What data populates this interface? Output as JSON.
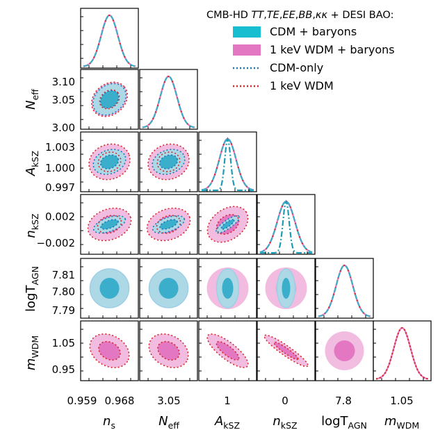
{
  "chart_data": {
    "type": "corner",
    "legend": {
      "title": "CMB-HD TT,TE,EE,BB,κκ + DESI BAO:",
      "title_parts": [
        {
          "t": "CMB-HD ",
          "i": false
        },
        {
          "t": "TT",
          "i": true
        },
        {
          "t": ",",
          "i": false
        },
        {
          "t": "TE",
          "i": true
        },
        {
          "t": ",",
          "i": false
        },
        {
          "t": "EE",
          "i": true
        },
        {
          "t": ",",
          "i": false
        },
        {
          "t": "BB",
          "i": true
        },
        {
          "t": ",",
          "i": false
        },
        {
          "t": "κκ",
          "i": true
        },
        {
          "t": " + DESI BAO:",
          "i": false
        }
      ],
      "placement": "top-right",
      "entries": [
        {
          "label": "CDM + baryons",
          "style": "filled",
          "color": "#17becf"
        },
        {
          "label": "1 keV WDM + baryons",
          "style": "filled",
          "color": "#e377c2"
        },
        {
          "label": "CDM-only",
          "style": "dotted",
          "color": "#1f77b4"
        },
        {
          "label": "1 keV WDM",
          "style": "dotted",
          "color": "#d62728"
        }
      ]
    },
    "colors": {
      "cdm_baryons_inner": "#3aaecb",
      "cdm_baryons_outer": "#add8e6",
      "wdm_baryons_inner": "#e377c2",
      "wdm_baryons_outer": "#f2bbe0",
      "cdm_only_line": "#1f77b4",
      "wdm_line": "#d62728"
    },
    "parameters": [
      {
        "base": "n",
        "sub": "s",
        "italic": true,
        "xticks": [
          "0.959",
          "0.968"
        ],
        "yticks": []
      },
      {
        "base": "N",
        "sub": "eff",
        "italic": true,
        "xticks": [
          "3.05"
        ],
        "yticks": [
          "3.10",
          "3.05",
          "3.00"
        ]
      },
      {
        "base": "A",
        "sub": "kSZ",
        "italic": true,
        "xticks": [
          "1"
        ],
        "yticks": [
          "1.003",
          "1.000",
          "0.997"
        ]
      },
      {
        "base": "n",
        "sub": "kSZ",
        "italic": true,
        "xticks": [
          "0"
        ],
        "yticks": [
          "0.002",
          "−0.002"
        ]
      },
      {
        "base": "logT",
        "sub": "AGN",
        "italic": false,
        "xticks": [
          "7.8"
        ],
        "yticks": [
          "7.81",
          "7.80",
          "7.79"
        ]
      },
      {
        "base": "m",
        "sub": "WDM",
        "italic": true,
        "xticks": [
          "1.05"
        ],
        "yticks": [
          "1.05",
          "0.95"
        ]
      }
    ],
    "marginals": [
      {
        "param": "n_s",
        "series": [
          "cdm+baryons",
          "wdm+baryons",
          "cdm-only",
          "wdm"
        ],
        "peak": 0.9635,
        "sigma": 0.0013
      },
      {
        "param": "N_eff",
        "series": [
          "cdm+baryons",
          "wdm+baryons",
          "cdm-only",
          "wdm"
        ],
        "peak": 3.046,
        "sigma": 0.016
      },
      {
        "param": "A_kSZ",
        "series": [
          "cdm+baryons",
          "wdm+baryons",
          "cdm-only",
          "wdm"
        ],
        "peak": 1.0,
        "sigma": 0.0014,
        "cdm_only_sigma": 0.0007
      },
      {
        "param": "n_kSZ",
        "series": [
          "cdm+baryons",
          "wdm+baryons",
          "cdm-only",
          "wdm"
        ],
        "peak": 0.0,
        "sigma": 0.0012,
        "cdm_only_sigma": 0.0004
      },
      {
        "param": "logT_AGN",
        "series": [
          "cdm+baryons",
          "wdm+baryons"
        ],
        "peak": 7.8,
        "sigma": 0.006
      },
      {
        "param": "m_WDM",
        "series": [
          "wdm+baryons",
          "wdm"
        ],
        "peak": 1.0,
        "sigma": 0.03
      }
    ]
  }
}
